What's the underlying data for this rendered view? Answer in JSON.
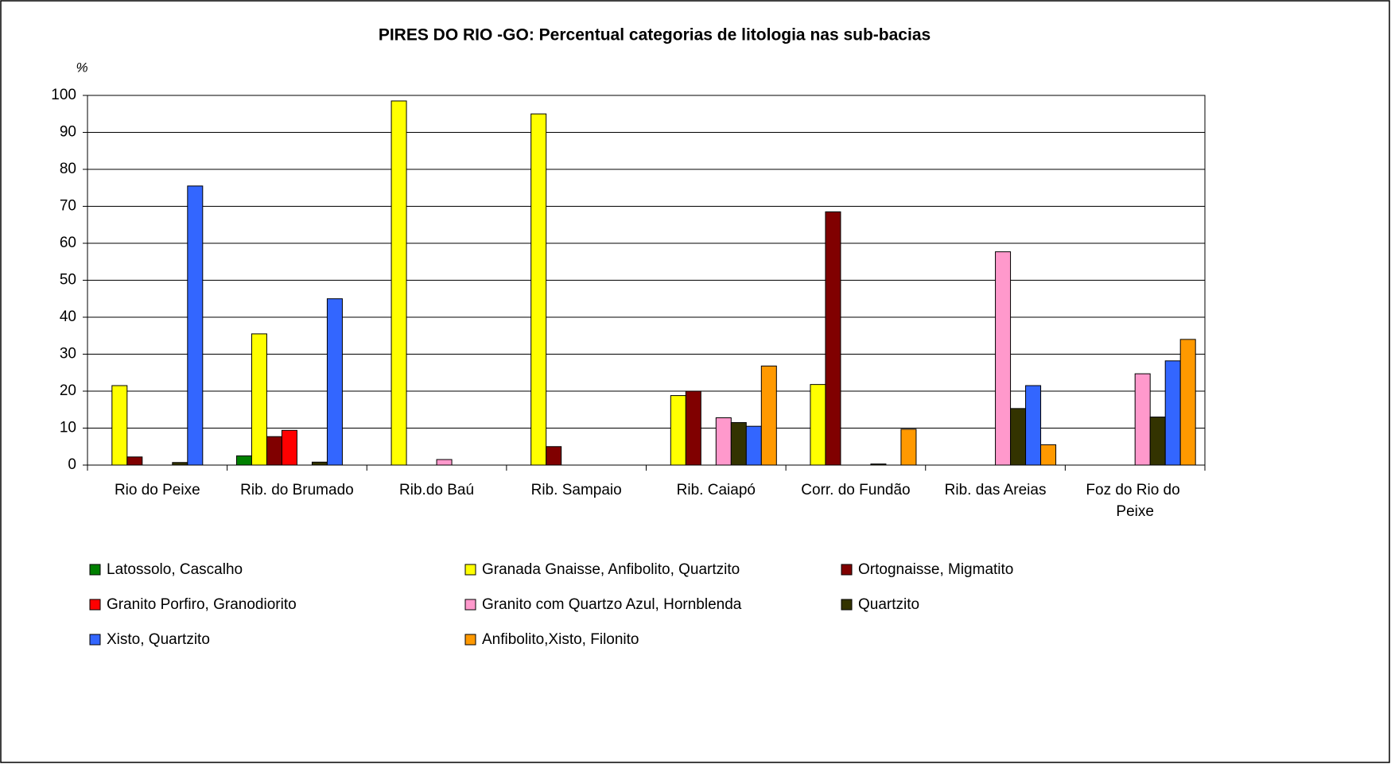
{
  "chart_data": {
    "type": "bar",
    "title": "PIRES DO RIO -GO: Percentual categorias de litologia nas sub-bacias",
    "y_label": "%",
    "categories": [
      "Rio do Peixe",
      "Rib. do Brumado",
      "Rib.do Baú",
      "Rib. Sampaio",
      "Rib. Caiapó",
      "Corr. do Fundão",
      "Rib. das Areias",
      "Foz do Rio do Peixe"
    ],
    "series": [
      {
        "name": "Latossolo, Cascalho",
        "color": "#008000",
        "values": [
          0,
          2.5,
          0,
          0,
          0,
          0,
          0,
          0
        ]
      },
      {
        "name": "Granada Gnaisse, Anfibolito, Quartzito",
        "color": "#ffff00",
        "values": [
          21.5,
          35.5,
          98.5,
          95,
          18.8,
          21.8,
          0,
          0
        ]
      },
      {
        "name": "Ortognaisse, Migmatito",
        "color": "#800000",
        "values": [
          2.2,
          7.7,
          0,
          5,
          20,
          68.5,
          0,
          0
        ]
      },
      {
        "name": "Granito Porfiro, Granodiorito",
        "color": "#ff0000",
        "values": [
          0,
          9.4,
          0,
          0,
          0,
          0,
          0,
          0
        ]
      },
      {
        "name": "Granito com Quartzo Azul, Hornblenda",
        "color": "#ff99cc",
        "values": [
          0,
          0,
          1.5,
          0,
          12.8,
          0,
          57.7,
          24.7
        ]
      },
      {
        "name": "Quartzito",
        "color": "#333300",
        "values": [
          0.7,
          0.8,
          0,
          0,
          11.5,
          0.3,
          15.3,
          13
        ]
      },
      {
        "name": "Xisto, Quartzito",
        "color": "#3366ff",
        "values": [
          75.5,
          45,
          0,
          0,
          10.5,
          0,
          21.5,
          28.2
        ]
      },
      {
        "name": "Anfibolito,Xisto, Filonito",
        "color": "#ff9900",
        "values": [
          0,
          0,
          0,
          0,
          26.8,
          9.7,
          5.5,
          34
        ]
      }
    ],
    "ylim": [
      0,
      100
    ],
    "yticks": [
      0,
      10,
      20,
      30,
      40,
      50,
      60,
      70,
      80,
      90,
      100
    ],
    "grid": true,
    "legend": "bottom"
  }
}
